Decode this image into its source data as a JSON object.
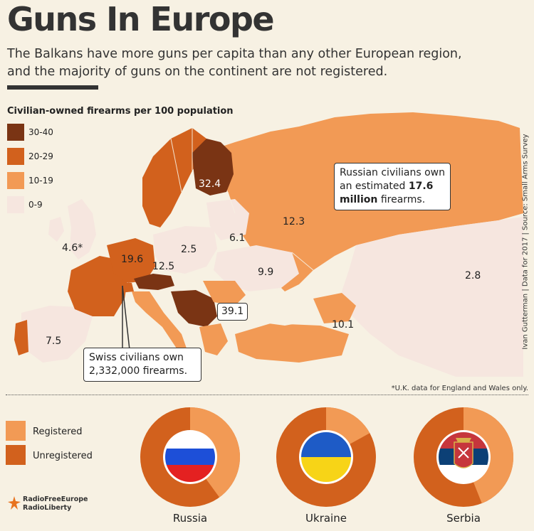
{
  "header": {
    "title": "Guns In Europe",
    "subtitle_line1": "The Balkans have more guns per capita than any other European region,",
    "subtitle_line2": "and the majority of guns on the continent are not registered."
  },
  "legend": {
    "title": "Civilian-owned firearms per 100 population",
    "items": [
      {
        "label": "30-40",
        "color": "#7a3414"
      },
      {
        "label": "20-29",
        "color": "#d2611d"
      },
      {
        "label": "10-19",
        "color": "#f29a55"
      },
      {
        "label": "0-9",
        "color": "#f6e6df"
      }
    ]
  },
  "map_labels": {
    "finland": "32.4",
    "russia": "12.3",
    "baltics": "6.1",
    "uk": "4.6*",
    "poland": "2.5",
    "germany": "19.6",
    "austria": "12.5",
    "ukraine": "9.9",
    "serbia": "39.1",
    "kazakhstan": "2.8",
    "turkey": "10.1",
    "portugal": "7.5"
  },
  "callouts": {
    "russia_line1": "Russian civilians own",
    "russia_line2_pre": "an estimated ",
    "russia_line2_bold": "17.6",
    "russia_line3_bold": "million",
    "russia_line3_post": " firearms.",
    "swiss_line1": "Swiss civilians own",
    "swiss_line2": "2,332,000 firearms."
  },
  "source": "Ivan Gutterman | Data for 2017 | Source: Small Arms Survey",
  "footnote": "*U.K. data for England and Wales only.",
  "bottom_legend": {
    "registered": "Registered",
    "unregistered": "Unregistered",
    "registered_color": "#f29a55",
    "unregistered_color": "#d2611d"
  },
  "donuts": [
    {
      "country": "Russia",
      "registered_share": 0.4
    },
    {
      "country": "Ukraine",
      "registered_share": 0.17
    },
    {
      "country": "Serbia",
      "registered_share": 0.44
    }
  ],
  "brand": {
    "line1": "RadioFreeEurope",
    "line2": "RadioLiberty"
  }
}
